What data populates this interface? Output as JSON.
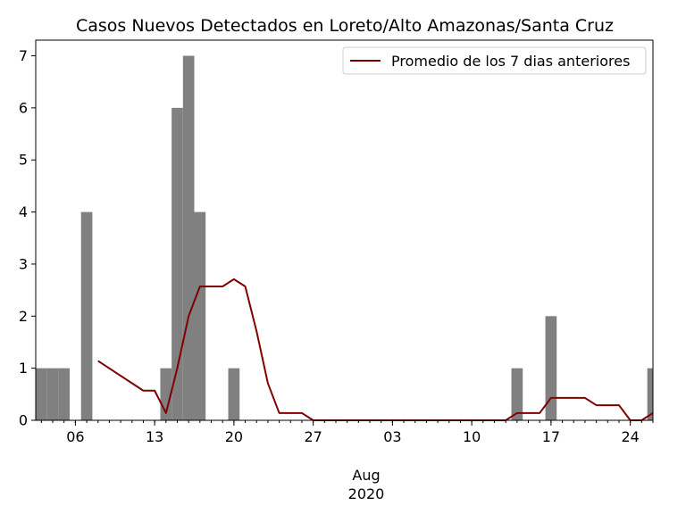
{
  "chart_data": {
    "type": "bar",
    "title": "Casos Nuevos Detectados en Loreto/Alto Amazonas/Santa Cruz",
    "xlabel": "",
    "ylabel": "",
    "x_range": [
      "2020-07-03",
      "2020-08-26"
    ],
    "ylim": [
      0,
      7.3
    ],
    "y_ticks": [
      0,
      1,
      2,
      3,
      4,
      5,
      6,
      7
    ],
    "x_ticks": [
      {
        "date": "2020-07-06",
        "label": "06"
      },
      {
        "date": "2020-07-13",
        "label": "13"
      },
      {
        "date": "2020-07-20",
        "label": "20"
      },
      {
        "date": "2020-07-27",
        "label": "27"
      },
      {
        "date": "2020-08-03",
        "label": "03"
      },
      {
        "date": "2020-08-10",
        "label": "10"
      },
      {
        "date": "2020-08-17",
        "label": "17"
      },
      {
        "date": "2020-08-24",
        "label": "24"
      }
    ],
    "month_label": "Aug",
    "year_label": "2020",
    "bar_color": "#808080",
    "line_color": "#800000",
    "bars": [
      {
        "date": "2020-07-03",
        "value": 1
      },
      {
        "date": "2020-07-04",
        "value": 1
      },
      {
        "date": "2020-07-05",
        "value": 1
      },
      {
        "date": "2020-07-07",
        "value": 4
      },
      {
        "date": "2020-07-14",
        "value": 1
      },
      {
        "date": "2020-07-15",
        "value": 6
      },
      {
        "date": "2020-07-16",
        "value": 7
      },
      {
        "date": "2020-07-17",
        "value": 4
      },
      {
        "date": "2020-07-20",
        "value": 1
      },
      {
        "date": "2020-08-14",
        "value": 1
      },
      {
        "date": "2020-08-17",
        "value": 2
      },
      {
        "date": "2020-08-26",
        "value": 1
      }
    ],
    "series": [
      {
        "name": "Promedio de los 7 dias anteriores",
        "points": [
          {
            "date": "2020-07-08",
            "value": 1.14
          },
          {
            "date": "2020-07-12",
            "value": 0.57
          },
          {
            "date": "2020-07-13",
            "value": 0.57
          },
          {
            "date": "2020-07-14",
            "value": 0.14
          },
          {
            "date": "2020-07-15",
            "value": 1.0
          },
          {
            "date": "2020-07-16",
            "value": 2.0
          },
          {
            "date": "2020-07-17",
            "value": 2.57
          },
          {
            "date": "2020-07-19",
            "value": 2.57
          },
          {
            "date": "2020-07-20",
            "value": 2.71
          },
          {
            "date": "2020-07-21",
            "value": 2.57
          },
          {
            "date": "2020-07-22",
            "value": 1.71
          },
          {
            "date": "2020-07-23",
            "value": 0.71
          },
          {
            "date": "2020-07-24",
            "value": 0.14
          },
          {
            "date": "2020-07-26",
            "value": 0.14
          },
          {
            "date": "2020-07-27",
            "value": 0.0
          },
          {
            "date": "2020-08-13",
            "value": 0.0
          },
          {
            "date": "2020-08-14",
            "value": 0.14
          },
          {
            "date": "2020-08-16",
            "value": 0.14
          },
          {
            "date": "2020-08-17",
            "value": 0.43
          },
          {
            "date": "2020-08-20",
            "value": 0.43
          },
          {
            "date": "2020-08-21",
            "value": 0.29
          },
          {
            "date": "2020-08-23",
            "value": 0.29
          },
          {
            "date": "2020-08-24",
            "value": 0.0
          },
          {
            "date": "2020-08-25",
            "value": 0.0
          },
          {
            "date": "2020-08-26",
            "value": 0.14
          }
        ]
      }
    ],
    "legend": {
      "position": "top-right"
    },
    "grid": false
  }
}
